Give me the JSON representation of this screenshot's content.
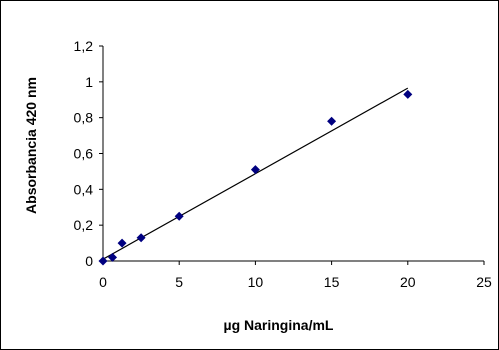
{
  "chart_data": {
    "type": "scatter",
    "xlabel": "µg  Naringina/mL",
    "ylabel": "Absorbancia 420 nm",
    "xlim": [
      0,
      25
    ],
    "ylim": [
      0,
      1.2
    ],
    "x_ticks": [
      "0",
      "5",
      "10",
      "15",
      "20",
      "25"
    ],
    "y_ticks": [
      "0",
      "0,2",
      "0,4",
      "0,6",
      "0,8",
      "1",
      "1,2"
    ],
    "grid": false,
    "legend": "none",
    "marker_color": "#000080",
    "series": [
      {
        "x": [
          0,
          0.625,
          1.25,
          2.5,
          5,
          10,
          15,
          20
        ],
        "y": [
          0.0,
          0.02,
          0.1,
          0.13,
          0.25,
          0.51,
          0.78,
          0.93
        ]
      }
    ],
    "trendline": {
      "type": "linear",
      "x": [
        0,
        20
      ],
      "y": [
        0.01,
        0.965
      ],
      "color": "#000000"
    }
  }
}
